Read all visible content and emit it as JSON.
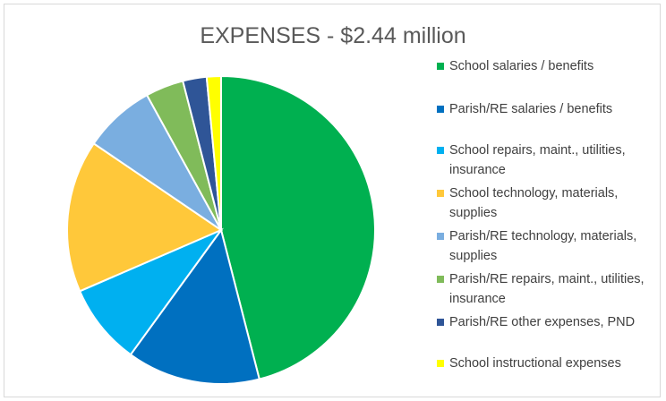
{
  "chart_data": {
    "type": "pie",
    "title": "EXPENSES - $2.44 million",
    "categories": [
      "School salaries / benefits",
      "Parish/RE salaries / benefits",
      "School repairs, maint., utilities, insurance",
      "School technology, materials, supplies",
      "Parish/RE technology, materials, supplies",
      "Parish/RE repairs, maint., utilities, insurance",
      "Parish/RE other expenses, PND",
      "School instructional expenses"
    ],
    "values": [
      46,
      14,
      8.5,
      16,
      7.5,
      4,
      2.5,
      1.5
    ],
    "colors": [
      "#00b050",
      "#0070c0",
      "#00b0f0",
      "#ffc83a",
      "#7aaee0",
      "#80bb5a",
      "#2f5597",
      "#ffff00"
    ],
    "legend": "right"
  }
}
